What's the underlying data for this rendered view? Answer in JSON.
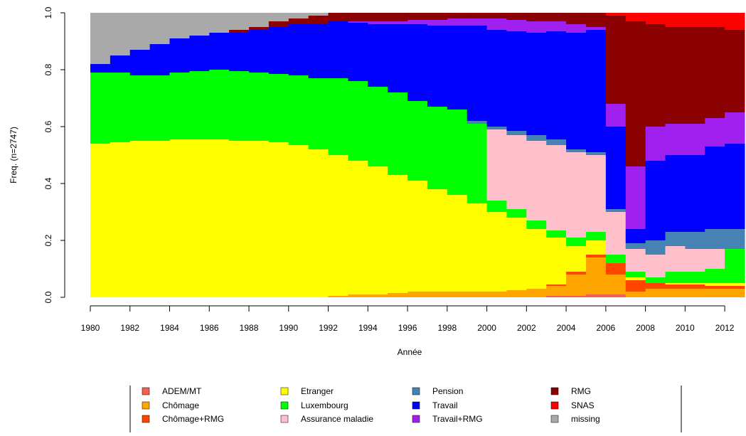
{
  "chart_data": {
    "type": "stacked-step",
    "x_label": "Année",
    "y_label": "Freq. (n=2747)",
    "x": [
      1980,
      1981,
      1982,
      1983,
      1984,
      1985,
      1986,
      1987,
      1988,
      1989,
      1990,
      1991,
      1992,
      1993,
      1994,
      1995,
      1996,
      1997,
      1998,
      1999,
      2000,
      2001,
      2002,
      2003,
      2004,
      2005,
      2006,
      2007,
      2008,
      2009,
      2010,
      2011,
      2012
    ],
    "xlim": [
      1980,
      2013
    ],
    "xticks": [
      1980,
      1982,
      1984,
      1986,
      1988,
      1990,
      1992,
      1994,
      1996,
      1998,
      2000,
      2002,
      2004,
      2006,
      2008,
      2010,
      2012
    ],
    "ylim": [
      0,
      1
    ],
    "yticks": [
      {
        "value": 0,
        "label": "0.0"
      },
      0.2,
      0.4,
      0.6,
      0.8,
      {
        "value": 1,
        "label": "1.0"
      }
    ],
    "series": [
      {
        "name": "ADEM/MT",
        "color": "#f4604a",
        "values": [
          0,
          0,
          0,
          0,
          0,
          0,
          0,
          0,
          0,
          0,
          0,
          0,
          0,
          0,
          0,
          0,
          0,
          0,
          0,
          0,
          0,
          0,
          0,
          0.005,
          0.005,
          0.01,
          0.01,
          0,
          0,
          0,
          0,
          0,
          0
        ]
      },
      {
        "name": "Chômage",
        "color": "#ffa500",
        "values": [
          0,
          0,
          0,
          0,
          0,
          0,
          0,
          0,
          0,
          0,
          0,
          0,
          0.005,
          0.01,
          0.01,
          0.015,
          0.02,
          0.02,
          0.02,
          0.02,
          0.02,
          0.025,
          0.03,
          0.035,
          0.075,
          0.13,
          0.07,
          0.02,
          0.03,
          0.03,
          0.03,
          0.03,
          0.03
        ]
      },
      {
        "name": "Chômage+RMG",
        "color": "#ff4500",
        "values": [
          0,
          0,
          0,
          0,
          0,
          0,
          0,
          0,
          0,
          0,
          0,
          0,
          0,
          0,
          0,
          0,
          0,
          0,
          0,
          0,
          0,
          0,
          0,
          0.005,
          0.01,
          0.01,
          0.04,
          0.04,
          0.02,
          0.015,
          0.015,
          0.01,
          0.01
        ]
      },
      {
        "name": "Etranger",
        "color": "#ffff00",
        "values": [
          0.54,
          0.545,
          0.55,
          0.55,
          0.555,
          0.555,
          0.555,
          0.55,
          0.55,
          0.545,
          0.535,
          0.52,
          0.495,
          0.47,
          0.45,
          0.415,
          0.39,
          0.36,
          0.34,
          0.31,
          0.28,
          0.255,
          0.21,
          0.165,
          0.09,
          0.05,
          0,
          0.01,
          0,
          0.005,
          0.005,
          0.01,
          0.01
        ]
      },
      {
        "name": "Luxembourg",
        "color": "#00ff00",
        "values": [
          0.25,
          0.245,
          0.23,
          0.23,
          0.235,
          0.24,
          0.245,
          0.245,
          0.24,
          0.24,
          0.245,
          0.25,
          0.27,
          0.28,
          0.28,
          0.29,
          0.28,
          0.29,
          0.3,
          0.28,
          0.04,
          0.03,
          0.03,
          0.025,
          0.03,
          0.03,
          0.03,
          0.02,
          0.02,
          0.04,
          0.04,
          0.05,
          0.12
        ]
      },
      {
        "name": "Assurance maladie",
        "color": "#ffc0cb",
        "values": [
          0,
          0,
          0,
          0,
          0,
          0,
          0,
          0,
          0,
          0,
          0,
          0,
          0,
          0,
          0,
          0,
          0,
          0,
          0,
          0,
          0.25,
          0.26,
          0.28,
          0.3,
          0.3,
          0.27,
          0.15,
          0.08,
          0.08,
          0.09,
          0.08,
          0.07,
          0
        ]
      },
      {
        "name": "Pension",
        "color": "#4682b4",
        "values": [
          0,
          0,
          0,
          0,
          0,
          0,
          0,
          0,
          0,
          0,
          0,
          0,
          0,
          0,
          0,
          0,
          0,
          0,
          0,
          0.01,
          0.01,
          0.015,
          0.02,
          0.02,
          0.01,
          0.01,
          0.01,
          0.02,
          0.05,
          0.05,
          0.06,
          0.07,
          0.07
        ]
      },
      {
        "name": "Travail",
        "color": "#0000ff",
        "values": [
          0.03,
          0.06,
          0.09,
          0.11,
          0.12,
          0.125,
          0.13,
          0.135,
          0.15,
          0.165,
          0.18,
          0.19,
          0.2,
          0.205,
          0.22,
          0.24,
          0.27,
          0.285,
          0.295,
          0.335,
          0.34,
          0.35,
          0.36,
          0.38,
          0.41,
          0.43,
          0.29,
          0.05,
          0.28,
          0.27,
          0.27,
          0.29,
          0.3
        ]
      },
      {
        "name": "Travail+RMG",
        "color": "#a020f0",
        "values": [
          0,
          0,
          0,
          0,
          0,
          0,
          0,
          0,
          0,
          0,
          0,
          0,
          0,
          0.005,
          0.01,
          0.01,
          0.015,
          0.02,
          0.025,
          0.025,
          0.04,
          0.04,
          0.04,
          0.035,
          0.03,
          0.01,
          0.08,
          0.22,
          0.12,
          0.11,
          0.11,
          0.1,
          0.11
        ]
      },
      {
        "name": "RMG",
        "color": "#8b0000",
        "values": [
          0,
          0,
          0,
          0,
          0,
          0,
          0,
          0.01,
          0.01,
          0.02,
          0.02,
          0.03,
          0.03,
          0.03,
          0.03,
          0.03,
          0.025,
          0.025,
          0.02,
          0.02,
          0.02,
          0.025,
          0.03,
          0.03,
          0.04,
          0.05,
          0.31,
          0.51,
          0.36,
          0.34,
          0.34,
          0.32,
          0.29
        ]
      },
      {
        "name": "SNAS",
        "color": "#ff0000",
        "values": [
          0,
          0,
          0,
          0,
          0,
          0,
          0,
          0,
          0,
          0,
          0,
          0,
          0,
          0,
          0,
          0,
          0,
          0,
          0,
          0,
          0,
          0,
          0,
          0,
          0,
          0,
          0.01,
          0.03,
          0.04,
          0.05,
          0.05,
          0.05,
          0.06
        ]
      },
      {
        "name": "missing",
        "color": "#a9a9a9",
        "values": [
          0.18,
          0.15,
          0.13,
          0.11,
          0.09,
          0.08,
          0.07,
          0.06,
          0.05,
          0.03,
          0.02,
          0.01,
          0,
          0,
          0,
          0,
          0,
          0,
          0,
          0,
          0,
          0,
          0,
          0,
          0,
          0,
          0,
          0,
          0,
          0,
          0,
          0,
          0
        ]
      }
    ]
  }
}
